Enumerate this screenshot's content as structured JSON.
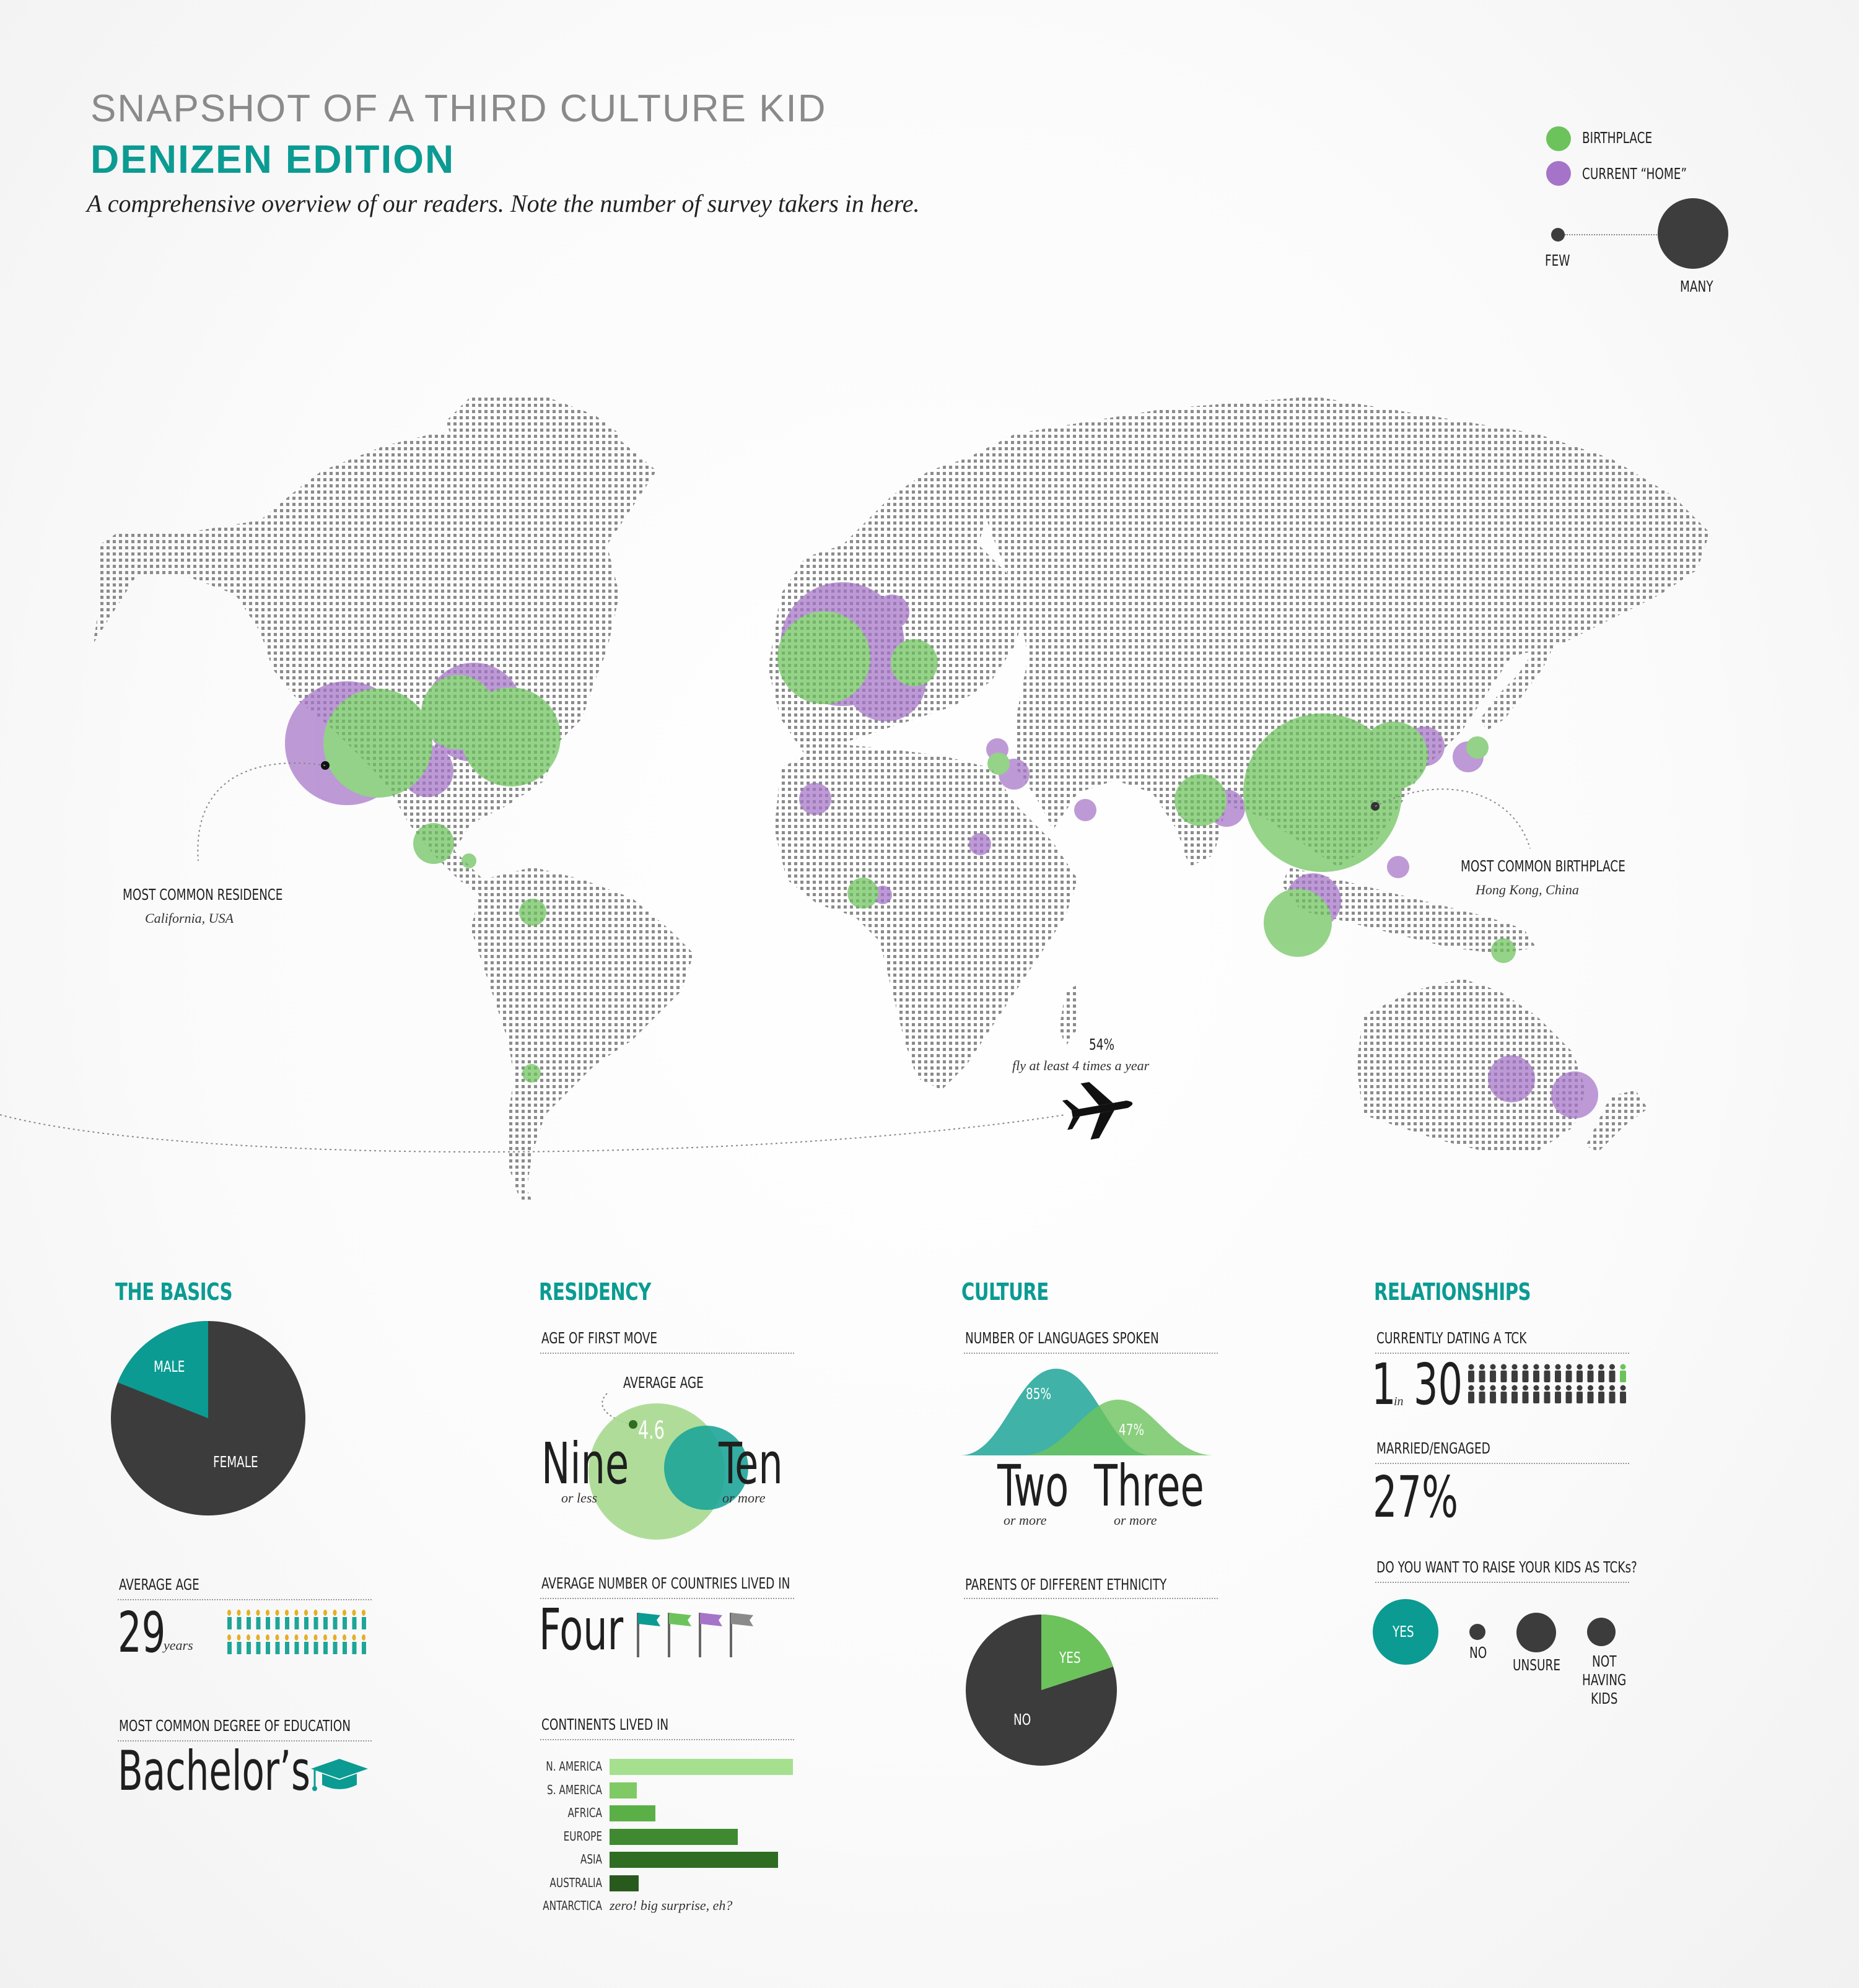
{
  "header": {
    "title": "SNAPSHOT OF A THIRD CULTURE KID",
    "subtitle": "DENIZEN EDITION",
    "description": "A comprehensive overview of our readers. Note the number of survey takers in here."
  },
  "legend": {
    "birthplace": "BIRTHPLACE",
    "current_home": "CURRENT “HOME”",
    "few": "FEW",
    "many": "MANY",
    "colors": {
      "birthplace": "#6cc35c",
      "current_home": "#a574c8",
      "land": "#888888"
    }
  },
  "map": {
    "callouts": {
      "residence_label": "MOST COMMON RESIDENCE",
      "residence_value": "California, USA",
      "birthplace_label": "MOST COMMON BIRTHPLACE",
      "birthplace_value": "Hong Kong, China",
      "flight_pct": "54%",
      "flight_text": "fly at least 4 times a year"
    },
    "circles": [
      {
        "region": "California",
        "type": "home",
        "size": 5
      },
      {
        "region": "California",
        "type": "birth",
        "size": 4
      },
      {
        "region": "Texas",
        "type": "home",
        "size": 2
      },
      {
        "region": "US Northeast",
        "type": "home",
        "size": 3
      },
      {
        "region": "US Northeast",
        "type": "birth",
        "size": 4
      },
      {
        "region": "US East",
        "type": "birth",
        "size": 3
      },
      {
        "region": "Mexico",
        "type": "birth",
        "size": 1.5
      },
      {
        "region": "Central America",
        "type": "birth",
        "size": 0.6
      },
      {
        "region": "Colombia",
        "type": "birth",
        "size": 1
      },
      {
        "region": "Chile",
        "type": "birth",
        "size": 0.6
      },
      {
        "region": "UK",
        "type": "home",
        "size": 4
      },
      {
        "region": "UK",
        "type": "birth",
        "size": 3.5
      },
      {
        "region": "Western Europe",
        "type": "home",
        "size": 3
      },
      {
        "region": "Scandinavia",
        "type": "home",
        "size": 1
      },
      {
        "region": "Eastern Europe",
        "type": "birth",
        "size": 1.5
      },
      {
        "region": "West Africa",
        "type": "home",
        "size": 1
      },
      {
        "region": "Turkey",
        "type": "home",
        "size": 0.7
      },
      {
        "region": "Middle East",
        "type": "birth",
        "size": 0.7
      },
      {
        "region": "Middle East",
        "type": "home",
        "size": 1
      },
      {
        "region": "Sudan",
        "type": "home",
        "size": 0.7
      },
      {
        "region": "Gulf",
        "type": "home",
        "size": 0.7
      },
      {
        "region": "Central Africa",
        "type": "birth",
        "size": 1
      },
      {
        "region": "Central Africa",
        "type": "home",
        "size": 0.6
      },
      {
        "region": "India",
        "type": "birth",
        "size": 1.5
      },
      {
        "region": "India",
        "type": "home",
        "size": 1.2
      },
      {
        "region": "China / Hong Kong",
        "type": "birth",
        "size": 6
      },
      {
        "region": "Hong Kong",
        "type": "home",
        "size": 1.8
      },
      {
        "region": "North China",
        "type": "birth",
        "size": 2
      },
      {
        "region": "Korea",
        "type": "home",
        "size": 1.2
      },
      {
        "region": "Japan",
        "type": "home",
        "size": 1
      },
      {
        "region": "Japan",
        "type": "birth",
        "size": 0.7
      },
      {
        "region": "Philippines",
        "type": "home",
        "size": 0.7
      },
      {
        "region": "Thailand",
        "type": "home",
        "size": 1.5
      },
      {
        "region": "Singapore / Malaysia",
        "type": "birth",
        "size": 2
      },
      {
        "region": "Papua New Guinea",
        "type": "birth",
        "size": 0.7
      },
      {
        "region": "Australia",
        "type": "home",
        "size": 1.3
      },
      {
        "region": "New Zealand",
        "type": "home",
        "size": 1.3
      }
    ]
  },
  "basics": {
    "title": "THE BASICS",
    "gender": {
      "male_label": "MALE",
      "female_label": "FEMALE",
      "male_pct": 0.19,
      "female_pct": 0.81
    },
    "avg_age_label": "AVERAGE AGE",
    "avg_age_value": "29",
    "avg_age_unit": "years",
    "education_label": "MOST COMMON DEGREE OF EDUCATION",
    "education_value": "Bachelor’s"
  },
  "residency": {
    "title": "RESIDENCY",
    "first_move_label": "AGE OF FIRST MOVE",
    "average_age_label": "AVERAGE AGE",
    "average_age_value": "4.6",
    "nine": "Nine",
    "nine_sub": "or less",
    "ten": "Ten",
    "ten_sub": "or more",
    "countries_label": "AVERAGE NUMBER OF COUNTRIES LIVED IN",
    "countries_value": "Four",
    "continents_label": "CONTINENTS LIVED IN",
    "antarctica_note": "zero! big surprise, eh?"
  },
  "chart_data": {
    "type": "bar",
    "title": "CONTINENTS LIVED IN",
    "categories": [
      "N. AMERICA",
      "S. AMERICA",
      "AFRICA",
      "EUROPE",
      "ASIA",
      "AUSTRALIA",
      "ANTARCTICA"
    ],
    "values": [
      100,
      15,
      25,
      70,
      92,
      16,
      0
    ],
    "colors": [
      "#a5e08f",
      "#7fca64",
      "#5ab046",
      "#3f8a31",
      "#2f6d23",
      "#285a1e",
      "#285a1e"
    ]
  },
  "culture": {
    "title": "CULTURE",
    "languages_label": "NUMBER OF LANGUAGES SPOKEN",
    "two_pct": "85%",
    "three_pct": "47%",
    "two": "Two",
    "two_sub": "or more",
    "three": "Three",
    "three_sub": "or more",
    "ethnicity_label": "PARENTS OF DIFFERENT ETHNICITY",
    "yes_label": "YES",
    "no_label": "NO",
    "yes_pct": 0.2
  },
  "relationships": {
    "title": "RELATIONSHIPS",
    "dating_label": "CURRENTLY DATING A TCK",
    "dating_one": "1",
    "dating_in": "in",
    "dating_thirty": "30",
    "married_label": "MARRIED/ENGAGED",
    "married_value": "27%",
    "kids_label": "DO YOU WANT TO RAISE YOUR KIDS AS TCKs?",
    "yes": "YES",
    "no": "NO",
    "unsure": "UNSURE",
    "not_having_line1": "NOT",
    "not_having_line2": "HAVING",
    "not_having_line3": "KIDS"
  }
}
